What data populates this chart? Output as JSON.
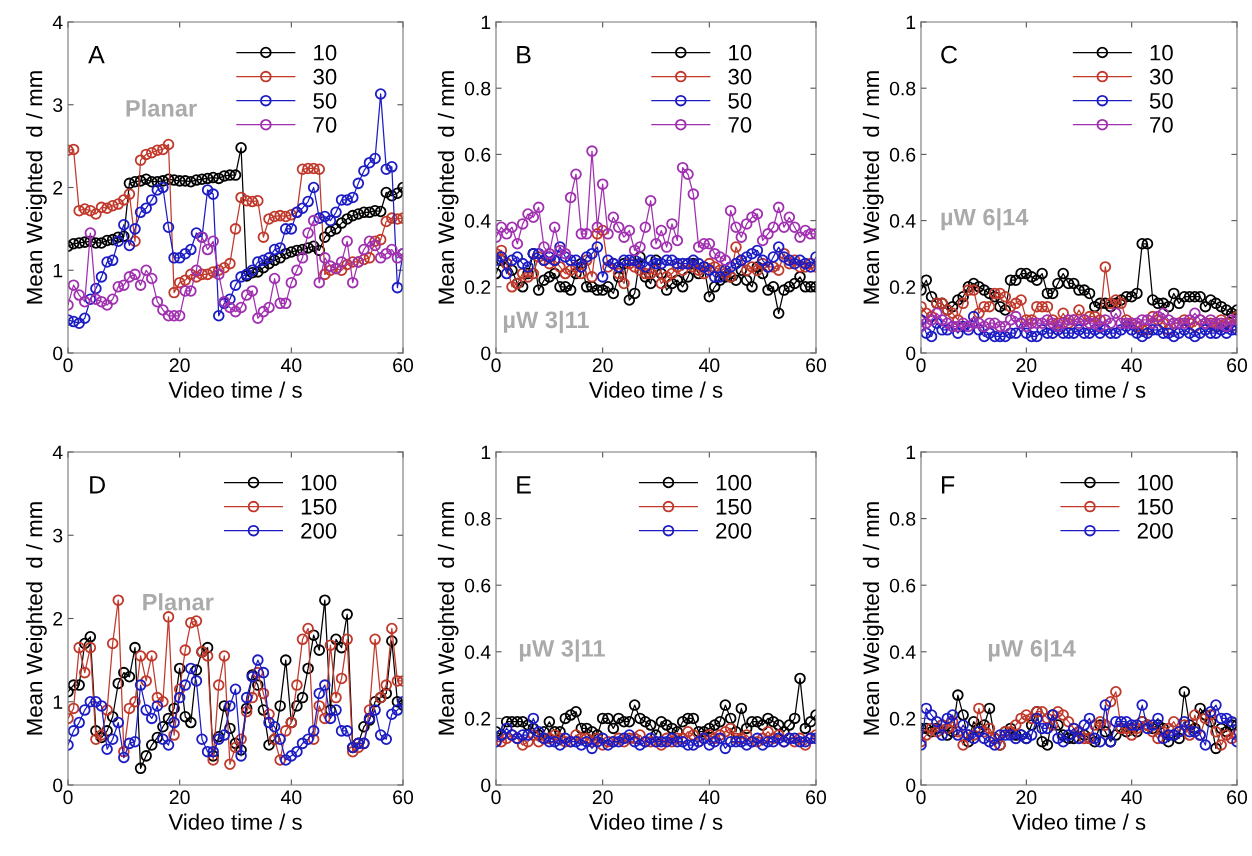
{
  "chart_data": [
    {
      "type": "line",
      "xlabel": "Video time / s",
      "ylabel": "Mean Weighted  d / mm",
      "annotations": [
        "A",
        "Planar"
      ],
      "xlim": [
        0,
        60
      ],
      "xticks": [
        0,
        20,
        40,
        60
      ],
      "ylim": [
        0,
        4
      ],
      "yticks": [
        0,
        1,
        2,
        3,
        4
      ],
      "marker": "circle",
      "legend": "top right",
      "x": [
        0,
        1,
        2,
        3,
        4,
        5,
        6,
        7,
        8,
        9,
        10,
        11,
        12,
        13,
        14,
        15,
        16,
        17,
        18,
        19,
        20,
        21,
        22,
        23,
        24,
        25,
        26,
        27,
        28,
        29,
        30,
        31,
        32,
        33,
        34,
        35,
        36,
        37,
        38,
        39,
        40,
        41,
        42,
        43,
        44,
        45,
        46,
        47,
        48,
        49,
        50,
        51,
        52,
        53,
        54,
        55,
        56,
        57,
        58,
        59,
        60
      ],
      "series": [
        {
          "name": "10",
          "color": "#000000",
          "values": [
            1.29,
            1.32,
            1.33,
            1.34,
            1.35,
            1.33,
            1.33,
            1.36,
            1.37,
            1.4,
            1.41,
            2.05,
            2.07,
            2.08,
            2.1,
            2.07,
            2.07,
            2.08,
            2.1,
            2.09,
            2.08,
            2.08,
            2.07,
            2.09,
            2.1,
            2.11,
            2.12,
            2.11,
            2.14,
            2.15,
            2.15,
            2.48,
            0.93,
            0.97,
            0.98,
            1.03,
            1.08,
            1.12,
            1.15,
            1.2,
            1.22,
            1.24,
            1.25,
            1.27,
            1.29,
            1.24,
            1.4,
            1.47,
            1.5,
            1.57,
            1.62,
            1.66,
            1.68,
            1.7,
            1.7,
            1.72,
            1.71,
            1.94,
            1.9,
            1.93,
            2.0
          ]
        },
        {
          "name": "30",
          "color": "#c0392b",
          "values": [
            2.45,
            2.46,
            1.72,
            1.74,
            1.72,
            1.68,
            1.76,
            1.75,
            1.78,
            1.8,
            1.85,
            1.92,
            1.35,
            2.33,
            2.4,
            2.42,
            2.45,
            2.46,
            2.52,
            0.73,
            0.85,
            0.88,
            0.95,
            0.92,
            0.95,
            0.95,
            0.98,
            1.0,
            1.03,
            1.08,
            1.5,
            1.88,
            1.84,
            1.83,
            1.84,
            1.4,
            1.62,
            1.65,
            1.66,
            1.65,
            1.67,
            1.7,
            2.22,
            2.23,
            2.23,
            2.22,
            0.95,
            1.0,
            1.02,
            1.0,
            1.07,
            1.1,
            1.1,
            1.13,
            1.15,
            1.35,
            1.37,
            1.59,
            1.63,
            1.62,
            1.63
          ]
        },
        {
          "name": "50",
          "color": "#1c1cc4",
          "values": [
            0.4,
            0.38,
            0.36,
            0.42,
            0.65,
            0.78,
            0.92,
            1.1,
            1.12,
            1.35,
            1.55,
            1.3,
            1.5,
            1.7,
            1.75,
            1.85,
            1.97,
            2.0,
            1.52,
            1.15,
            1.15,
            1.2,
            1.25,
            1.45,
            1.4,
            1.97,
            1.92,
            0.45,
            0.6,
            0.65,
            0.82,
            0.92,
            0.95,
            1.0,
            1.1,
            1.12,
            1.15,
            1.25,
            1.27,
            1.5,
            1.5,
            1.7,
            1.75,
            1.83,
            2.0,
            1.63,
            1.65,
            1.6,
            1.7,
            1.85,
            1.85,
            1.88,
            2.05,
            2.2,
            2.3,
            2.35,
            3.13,
            2.22,
            2.25,
            0.79,
            1.2
          ]
        },
        {
          "name": "70",
          "color": "#a030b0",
          "values": [
            0.58,
            0.82,
            0.7,
            0.62,
            1.45,
            0.65,
            0.62,
            0.58,
            0.65,
            0.8,
            0.82,
            0.92,
            0.95,
            0.82,
            1.0,
            0.9,
            0.62,
            0.52,
            0.45,
            0.45,
            0.45,
            0.75,
            0.75,
            1.0,
            1.4,
            1.25,
            1.35,
            0.95,
            0.62,
            0.55,
            0.5,
            0.55,
            0.7,
            0.75,
            0.42,
            0.5,
            0.55,
            0.9,
            0.6,
            0.6,
            0.85,
            1.0,
            1.15,
            1.45,
            1.6,
            0.85,
            1.15,
            1.05,
            1.02,
            1.1,
            1.35,
            0.85,
            1.1,
            1.25,
            1.35,
            1.3,
            1.15,
            1.2,
            1.25,
            1.15,
            1.2
          ]
        }
      ]
    },
    {
      "type": "line",
      "xlabel": "Video time / s",
      "ylabel": "Mean Weighted  d / mm",
      "annotations": [
        "B",
        "µW 3|11"
      ],
      "xlim": [
        0,
        60
      ],
      "xticks": [
        0,
        20,
        40,
        60
      ],
      "ylim": [
        0,
        1
      ],
      "yticks": [
        0,
        0.2,
        0.4,
        0.6,
        0.8,
        1
      ],
      "marker": "circle",
      "legend": "top right",
      "x": [
        0,
        1,
        2,
        3,
        4,
        5,
        6,
        7,
        8,
        9,
        10,
        11,
        12,
        13,
        14,
        15,
        16,
        17,
        18,
        19,
        20,
        21,
        22,
        23,
        24,
        25,
        26,
        27,
        28,
        29,
        30,
        31,
        32,
        33,
        34,
        35,
        36,
        37,
        38,
        39,
        40,
        41,
        42,
        43,
        44,
        45,
        46,
        47,
        48,
        49,
        50,
        51,
        52,
        53,
        54,
        55,
        56,
        57,
        58,
        59,
        60
      ],
      "series": [
        {
          "name": "10",
          "color": "#000000",
          "values": [
            0.24,
            0.28,
            0.27,
            0.25,
            0.21,
            0.2,
            0.24,
            0.3,
            0.19,
            0.22,
            0.23,
            0.24,
            0.2,
            0.2,
            0.19,
            0.24,
            0.27,
            0.2,
            0.2,
            0.19,
            0.19,
            0.2,
            0.18,
            0.23,
            0.27,
            0.16,
            0.18,
            0.29,
            0.23,
            0.21,
            0.28,
            0.24,
            0.19,
            0.21,
            0.22,
            0.2,
            0.23,
            0.27,
            0.24,
            0.26,
            0.17,
            0.2,
            0.22,
            0.23,
            0.23,
            0.22,
            0.25,
            0.22,
            0.2,
            0.26,
            0.24,
            0.19,
            0.2,
            0.12,
            0.19,
            0.2,
            0.21,
            0.23,
            0.2,
            0.2,
            0.2
          ]
        },
        {
          "name": "30",
          "color": "#c0392b",
          "values": [
            0.3,
            0.31,
            0.27,
            0.2,
            0.21,
            0.24,
            0.23,
            0.24,
            0.29,
            0.28,
            0.27,
            0.28,
            0.26,
            0.24,
            0.25,
            0.26,
            0.24,
            0.28,
            0.23,
            0.36,
            0.37,
            0.26,
            0.27,
            0.24,
            0.21,
            0.27,
            0.26,
            0.25,
            0.24,
            0.24,
            0.25,
            0.21,
            0.23,
            0.24,
            0.26,
            0.25,
            0.27,
            0.26,
            0.25,
            0.24,
            0.27,
            0.26,
            0.25,
            0.24,
            0.23,
            0.32,
            0.28,
            0.25,
            0.26,
            0.25,
            0.27,
            0.26,
            0.26,
            0.25,
            0.3,
            0.27,
            0.28,
            0.26,
            0.26,
            0.27,
            0.26
          ]
        },
        {
          "name": "50",
          "color": "#1c1cc4",
          "values": [
            0.28,
            0.29,
            0.24,
            0.28,
            0.29,
            0.27,
            0.26,
            0.3,
            0.3,
            0.28,
            0.29,
            0.28,
            0.32,
            0.29,
            0.28,
            0.28,
            0.26,
            0.29,
            0.3,
            0.32,
            0.23,
            0.28,
            0.27,
            0.26,
            0.28,
            0.28,
            0.28,
            0.27,
            0.26,
            0.28,
            0.27,
            0.27,
            0.28,
            0.28,
            0.27,
            0.27,
            0.27,
            0.28,
            0.27,
            0.26,
            0.25,
            0.23,
            0.23,
            0.25,
            0.26,
            0.27,
            0.28,
            0.29,
            0.3,
            0.31,
            0.28,
            0.26,
            0.29,
            0.32,
            0.29,
            0.28,
            0.27,
            0.28,
            0.27,
            0.26,
            0.29
          ]
        },
        {
          "name": "70",
          "color": "#a030b0",
          "values": [
            0.35,
            0.38,
            0.36,
            0.38,
            0.33,
            0.39,
            0.42,
            0.41,
            0.44,
            0.32,
            0.3,
            0.38,
            0.31,
            0.3,
            0.47,
            0.54,
            0.36,
            0.36,
            0.61,
            0.38,
            0.51,
            0.36,
            0.41,
            0.38,
            0.35,
            0.37,
            0.31,
            0.32,
            0.38,
            0.46,
            0.33,
            0.37,
            0.32,
            0.39,
            0.34,
            0.56,
            0.54,
            0.48,
            0.32,
            0.33,
            0.33,
            0.3,
            0.29,
            0.28,
            0.43,
            0.38,
            0.35,
            0.39,
            0.41,
            0.42,
            0.34,
            0.36,
            0.38,
            0.44,
            0.38,
            0.41,
            0.38,
            0.35,
            0.37,
            0.36,
            0.36
          ]
        }
      ]
    },
    {
      "type": "line",
      "xlabel": "Video time / s",
      "ylabel": "Mean Weighted  d / mm",
      "annotations": [
        "C",
        "µW 6|14"
      ],
      "xlim": [
        0,
        60
      ],
      "xticks": [
        0,
        20,
        40,
        60
      ],
      "ylim": [
        0,
        1
      ],
      "yticks": [
        0,
        0.2,
        0.4,
        0.6,
        0.8,
        1
      ],
      "marker": "circle",
      "legend": "top right",
      "x": [
        0,
        1,
        2,
        3,
        4,
        5,
        6,
        7,
        8,
        9,
        10,
        11,
        12,
        13,
        14,
        15,
        16,
        17,
        18,
        19,
        20,
        21,
        22,
        23,
        24,
        25,
        26,
        27,
        28,
        29,
        30,
        31,
        32,
        33,
        34,
        35,
        36,
        37,
        38,
        39,
        40,
        41,
        42,
        43,
        44,
        45,
        46,
        47,
        48,
        49,
        50,
        51,
        52,
        53,
        54,
        55,
        56,
        57,
        58,
        59,
        60
      ],
      "series": [
        {
          "name": "10",
          "color": "#000000",
          "values": [
            0.19,
            0.22,
            0.17,
            0.15,
            0.15,
            0.13,
            0.14,
            0.16,
            0.17,
            0.2,
            0.21,
            0.2,
            0.19,
            0.18,
            0.17,
            0.14,
            0.13,
            0.22,
            0.22,
            0.24,
            0.24,
            0.23,
            0.22,
            0.24,
            0.18,
            0.18,
            0.21,
            0.24,
            0.21,
            0.21,
            0.19,
            0.19,
            0.18,
            0.14,
            0.15,
            0.15,
            0.14,
            0.15,
            0.16,
            0.17,
            0.17,
            0.18,
            0.33,
            0.33,
            0.16,
            0.15,
            0.15,
            0.14,
            0.18,
            0.15,
            0.17,
            0.17,
            0.17,
            0.17,
            0.14,
            0.16,
            0.15,
            0.14,
            0.13,
            0.12,
            0.13
          ]
        },
        {
          "name": "30",
          "color": "#c0392b",
          "values": [
            0.14,
            0.12,
            0.11,
            0.15,
            0.15,
            0.13,
            0.12,
            0.1,
            0.15,
            0.19,
            0.19,
            0.12,
            0.14,
            0.14,
            0.18,
            0.18,
            0.17,
            0.14,
            0.15,
            0.16,
            0.1,
            0.1,
            0.14,
            0.14,
            0.14,
            0.1,
            0.09,
            0.12,
            0.09,
            0.1,
            0.13,
            0.1,
            0.11,
            0.11,
            0.1,
            0.26,
            0.15,
            0.16,
            0.15,
            0.1,
            0.09,
            0.08,
            0.07,
            0.07,
            0.11,
            0.1,
            0.09,
            0.07,
            0.09,
            0.09,
            0.1,
            0.09,
            0.08,
            0.1,
            0.09,
            0.09,
            0.08,
            0.1,
            0.09,
            0.08,
            0.11
          ]
        },
        {
          "name": "50",
          "color": "#1c1cc4",
          "values": [
            0.1,
            0.06,
            0.05,
            0.09,
            0.07,
            0.07,
            0.08,
            0.06,
            0.08,
            0.07,
            0.11,
            0.07,
            0.05,
            0.06,
            0.05,
            0.05,
            0.05,
            0.06,
            0.06,
            0.09,
            0.06,
            0.05,
            0.05,
            0.07,
            0.06,
            0.06,
            0.07,
            0.06,
            0.06,
            0.06,
            0.07,
            0.06,
            0.06,
            0.07,
            0.06,
            0.07,
            0.06,
            0.06,
            0.07,
            0.08,
            0.07,
            0.06,
            0.05,
            0.06,
            0.07,
            0.07,
            0.06,
            0.06,
            0.05,
            0.06,
            0.07,
            0.06,
            0.05,
            0.06,
            0.07,
            0.06,
            0.06,
            0.07,
            0.06,
            0.07,
            0.07
          ]
        },
        {
          "name": "70",
          "color": "#a030b0",
          "values": [
            0.08,
            0.09,
            0.1,
            0.12,
            0.1,
            0.09,
            0.08,
            0.08,
            0.09,
            0.08,
            0.09,
            0.09,
            0.08,
            0.09,
            0.09,
            0.08,
            0.08,
            0.1,
            0.11,
            0.09,
            0.08,
            0.09,
            0.09,
            0.09,
            0.1,
            0.09,
            0.08,
            0.09,
            0.1,
            0.1,
            0.09,
            0.1,
            0.09,
            0.09,
            0.08,
            0.1,
            0.09,
            0.12,
            0.09,
            0.09,
            0.09,
            0.09,
            0.1,
            0.1,
            0.09,
            0.11,
            0.12,
            0.1,
            0.09,
            0.09,
            0.09,
            0.1,
            0.12,
            0.1,
            0.09,
            0.1,
            0.09,
            0.09,
            0.08,
            0.1,
            0.1
          ]
        }
      ]
    },
    {
      "type": "line",
      "xlabel": "Video time / s",
      "ylabel": "Mean Weighted  d / mm",
      "annotations": [
        "D",
        "Planar"
      ],
      "xlim": [
        0,
        60
      ],
      "xticks": [
        0,
        20,
        40,
        60
      ],
      "ylim": [
        0,
        4
      ],
      "yticks": [
        0,
        1,
        2,
        3,
        4
      ],
      "marker": "circle",
      "legend": "top right",
      "x": [
        0,
        1,
        2,
        3,
        4,
        5,
        6,
        7,
        8,
        9,
        10,
        11,
        12,
        13,
        14,
        15,
        16,
        17,
        18,
        19,
        20,
        21,
        22,
        23,
        24,
        25,
        26,
        27,
        28,
        29,
        30,
        31,
        32,
        33,
        34,
        35,
        36,
        37,
        38,
        39,
        40,
        41,
        42,
        43,
        44,
        45,
        46,
        47,
        48,
        49,
        50,
        51,
        52,
        53,
        54,
        55,
        56,
        57,
        58,
        59,
        60
      ],
      "series": [
        {
          "name": "100",
          "color": "#000000",
          "values": [
            1.12,
            1.2,
            1.2,
            1.7,
            1.78,
            0.65,
            0.57,
            0.65,
            0.82,
            1.22,
            1.35,
            1.3,
            1.65,
            0.2,
            0.35,
            0.48,
            0.57,
            0.7,
            0.8,
            0.92,
            1.4,
            0.82,
            0.75,
            1.38,
            1.6,
            1.65,
            0.35,
            0.58,
            0.95,
            0.68,
            0.5,
            0.42,
            0.92,
            1.32,
            1.2,
            0.9,
            0.48,
            0.55,
            0.95,
            1.5,
            0.75,
            0.95,
            1.05,
            1.4,
            1.8,
            1.62,
            2.22,
            0.9,
            1.75,
            1.65,
            2.05,
            0.45,
            0.5,
            0.7,
            0.78,
            1.0,
            1.05,
            1.1,
            1.73,
            1.0,
            0.96
          ]
        },
        {
          "name": "150",
          "color": "#c0392b",
          "values": [
            0.8,
            0.92,
            1.65,
            1.35,
            1.65,
            0.55,
            0.6,
            0.9,
            1.7,
            2.22,
            0.4,
            0.92,
            1.0,
            1.55,
            1.25,
            1.55,
            1.05,
            1.0,
            2.02,
            0.6,
            1.15,
            1.62,
            1.95,
            1.97,
            1.6,
            1.55,
            0.3,
            1.2,
            1.55,
            0.25,
            0.45,
            0.55,
            0.88,
            1.05,
            1.35,
            1.1,
            0.85,
            0.55,
            0.3,
            0.65,
            0.75,
            1.2,
            1.75,
            1.88,
            0.55,
            0.95,
            0.8,
            1.68,
            1.05,
            1.28,
            1.75,
            0.4,
            0.45,
            0.5,
            0.9,
            1.75,
            1.05,
            1.2,
            1.88,
            1.25,
            1.25
          ]
        },
        {
          "name": "200",
          "color": "#1c1cc4",
          "values": [
            0.48,
            0.65,
            0.75,
            0.9,
            1.0,
            1.0,
            0.95,
            0.43,
            0.55,
            0.75,
            0.33,
            0.5,
            0.52,
            1.2,
            0.9,
            0.8,
            0.95,
            0.55,
            0.48,
            0.75,
            1.05,
            1.2,
            1.4,
            1.25,
            0.55,
            0.4,
            0.4,
            0.55,
            0.6,
            0.95,
            1.15,
            0.35,
            1.05,
            1.3,
            1.5,
            1.35,
            0.75,
            0.7,
            0.55,
            0.3,
            0.35,
            0.4,
            0.5,
            0.55,
            0.65,
            1.1,
            1.2,
            0.8,
            0.9,
            0.65,
            0.65,
            0.45,
            0.5,
            0.5,
            0.8,
            0.9,
            0.6,
            0.55,
            0.85,
            0.9,
            1.0
          ]
        }
      ]
    },
    {
      "type": "line",
      "xlabel": "Video time / s",
      "ylabel": "Mean Weighted  d / mm",
      "annotations": [
        "E",
        "µW 3|11"
      ],
      "xlim": [
        0,
        60
      ],
      "xticks": [
        0,
        20,
        40,
        60
      ],
      "ylim": [
        0,
        1
      ],
      "yticks": [
        0,
        0.2,
        0.4,
        0.6,
        0.8,
        1
      ],
      "marker": "circle",
      "legend": "top right",
      "x": [
        0,
        1,
        2,
        3,
        4,
        5,
        6,
        7,
        8,
        9,
        10,
        11,
        12,
        13,
        14,
        15,
        16,
        17,
        18,
        19,
        20,
        21,
        22,
        23,
        24,
        25,
        26,
        27,
        28,
        29,
        30,
        31,
        32,
        33,
        34,
        35,
        36,
        37,
        38,
        39,
        40,
        41,
        42,
        43,
        44,
        45,
        46,
        47,
        48,
        49,
        50,
        51,
        52,
        53,
        54,
        55,
        56,
        57,
        58,
        59,
        60
      ],
      "series": [
        {
          "name": "100",
          "color": "#000000",
          "values": [
            0.16,
            0.15,
            0.19,
            0.19,
            0.19,
            0.19,
            0.18,
            0.17,
            0.15,
            0.16,
            0.19,
            0.16,
            0.16,
            0.2,
            0.21,
            0.22,
            0.17,
            0.17,
            0.16,
            0.15,
            0.2,
            0.2,
            0.17,
            0.2,
            0.19,
            0.19,
            0.24,
            0.2,
            0.19,
            0.18,
            0.15,
            0.19,
            0.18,
            0.17,
            0.16,
            0.19,
            0.2,
            0.2,
            0.16,
            0.16,
            0.17,
            0.18,
            0.19,
            0.24,
            0.2,
            0.16,
            0.23,
            0.17,
            0.19,
            0.19,
            0.18,
            0.2,
            0.19,
            0.18,
            0.16,
            0.18,
            0.2,
            0.32,
            0.17,
            0.19,
            0.21
          ]
        },
        {
          "name": "150",
          "color": "#c0392b",
          "values": [
            0.13,
            0.13,
            0.14,
            0.15,
            0.14,
            0.12,
            0.13,
            0.15,
            0.13,
            0.14,
            0.14,
            0.15,
            0.14,
            0.13,
            0.13,
            0.15,
            0.14,
            0.14,
            0.13,
            0.14,
            0.12,
            0.13,
            0.13,
            0.14,
            0.13,
            0.14,
            0.14,
            0.15,
            0.13,
            0.13,
            0.13,
            0.12,
            0.14,
            0.13,
            0.14,
            0.14,
            0.16,
            0.15,
            0.13,
            0.14,
            0.15,
            0.14,
            0.15,
            0.16,
            0.17,
            0.14,
            0.14,
            0.15,
            0.13,
            0.13,
            0.14,
            0.16,
            0.14,
            0.15,
            0.13,
            0.14,
            0.13,
            0.14,
            0.12,
            0.14,
            0.15
          ]
        },
        {
          "name": "200",
          "color": "#1c1cc4",
          "values": [
            0.13,
            0.15,
            0.17,
            0.15,
            0.14,
            0.15,
            0.15,
            0.2,
            0.16,
            0.14,
            0.13,
            0.13,
            0.12,
            0.14,
            0.13,
            0.13,
            0.12,
            0.13,
            0.11,
            0.13,
            0.14,
            0.12,
            0.13,
            0.13,
            0.14,
            0.15,
            0.13,
            0.12,
            0.13,
            0.14,
            0.13,
            0.13,
            0.13,
            0.14,
            0.13,
            0.13,
            0.12,
            0.12,
            0.13,
            0.14,
            0.12,
            0.13,
            0.14,
            0.11,
            0.13,
            0.13,
            0.13,
            0.12,
            0.13,
            0.14,
            0.12,
            0.13,
            0.13,
            0.14,
            0.13,
            0.14,
            0.14,
            0.13,
            0.13,
            0.14,
            0.14
          ]
        }
      ]
    },
    {
      "type": "line",
      "xlabel": "Video time / s",
      "ylabel": "Mean Weighted  d / mm",
      "annotations": [
        "F",
        "µW 6|14"
      ],
      "xlim": [
        0,
        60
      ],
      "xticks": [
        0,
        20,
        40,
        60
      ],
      "ylim": [
        0,
        1
      ],
      "yticks": [
        0,
        0.2,
        0.4,
        0.6,
        0.8,
        1
      ],
      "marker": "circle",
      "legend": "top right",
      "x": [
        0,
        1,
        2,
        3,
        4,
        5,
        6,
        7,
        8,
        9,
        10,
        11,
        12,
        13,
        14,
        15,
        16,
        17,
        18,
        19,
        20,
        21,
        22,
        23,
        24,
        25,
        26,
        27,
        28,
        29,
        30,
        31,
        32,
        33,
        34,
        35,
        36,
        37,
        38,
        39,
        40,
        41,
        42,
        43,
        44,
        45,
        46,
        47,
        48,
        49,
        50,
        51,
        52,
        53,
        54,
        55,
        56,
        57,
        58,
        59,
        60
      ],
      "series": [
        {
          "name": "100",
          "color": "#000000",
          "values": [
            0.17,
            0.17,
            0.16,
            0.17,
            0.18,
            0.15,
            0.16,
            0.27,
            0.21,
            0.13,
            0.19,
            0.17,
            0.18,
            0.23,
            0.14,
            0.12,
            0.16,
            0.17,
            0.15,
            0.15,
            0.14,
            0.18,
            0.22,
            0.13,
            0.12,
            0.21,
            0.18,
            0.15,
            0.14,
            0.14,
            0.16,
            0.15,
            0.14,
            0.13,
            0.18,
            0.16,
            0.13,
            0.15,
            0.17,
            0.16,
            0.17,
            0.16,
            0.19,
            0.18,
            0.17,
            0.18,
            0.17,
            0.13,
            0.15,
            0.14,
            0.28,
            0.18,
            0.17,
            0.23,
            0.21,
            0.19,
            0.11,
            0.17,
            0.16,
            0.18,
            0.18
          ]
        },
        {
          "name": "150",
          "color": "#c0392b",
          "values": [
            0.13,
            0.15,
            0.17,
            0.16,
            0.18,
            0.17,
            0.19,
            0.16,
            0.12,
            0.15,
            0.15,
            0.23,
            0.16,
            0.17,
            0.14,
            0.12,
            0.16,
            0.16,
            0.18,
            0.2,
            0.21,
            0.2,
            0.22,
            0.22,
            0.2,
            0.18,
            0.22,
            0.21,
            0.19,
            0.17,
            0.16,
            0.14,
            0.14,
            0.18,
            0.19,
            0.18,
            0.25,
            0.28,
            0.17,
            0.17,
            0.15,
            0.17,
            0.19,
            0.18,
            0.16,
            0.14,
            0.16,
            0.17,
            0.19,
            0.16,
            0.18,
            0.15,
            0.21,
            0.15,
            0.2,
            0.21,
            0.16,
            0.12,
            0.15,
            0.14,
            0.15
          ]
        },
        {
          "name": "200",
          "color": "#1c1cc4",
          "values": [
            0.12,
            0.23,
            0.21,
            0.19,
            0.15,
            0.2,
            0.21,
            0.15,
            0.18,
            0.15,
            0.14,
            0.16,
            0.14,
            0.13,
            0.12,
            0.15,
            0.15,
            0.15,
            0.14,
            0.15,
            0.14,
            0.15,
            0.2,
            0.17,
            0.17,
            0.21,
            0.14,
            0.13,
            0.15,
            0.17,
            0.14,
            0.18,
            0.2,
            0.14,
            0.13,
            0.24,
            0.13,
            0.19,
            0.19,
            0.19,
            0.18,
            0.18,
            0.24,
            0.17,
            0.18,
            0.2,
            0.14,
            0.15,
            0.15,
            0.16,
            0.19,
            0.16,
            0.16,
            0.15,
            0.12,
            0.22,
            0.24,
            0.2,
            0.2,
            0.19,
            0.13
          ]
        }
      ]
    }
  ]
}
